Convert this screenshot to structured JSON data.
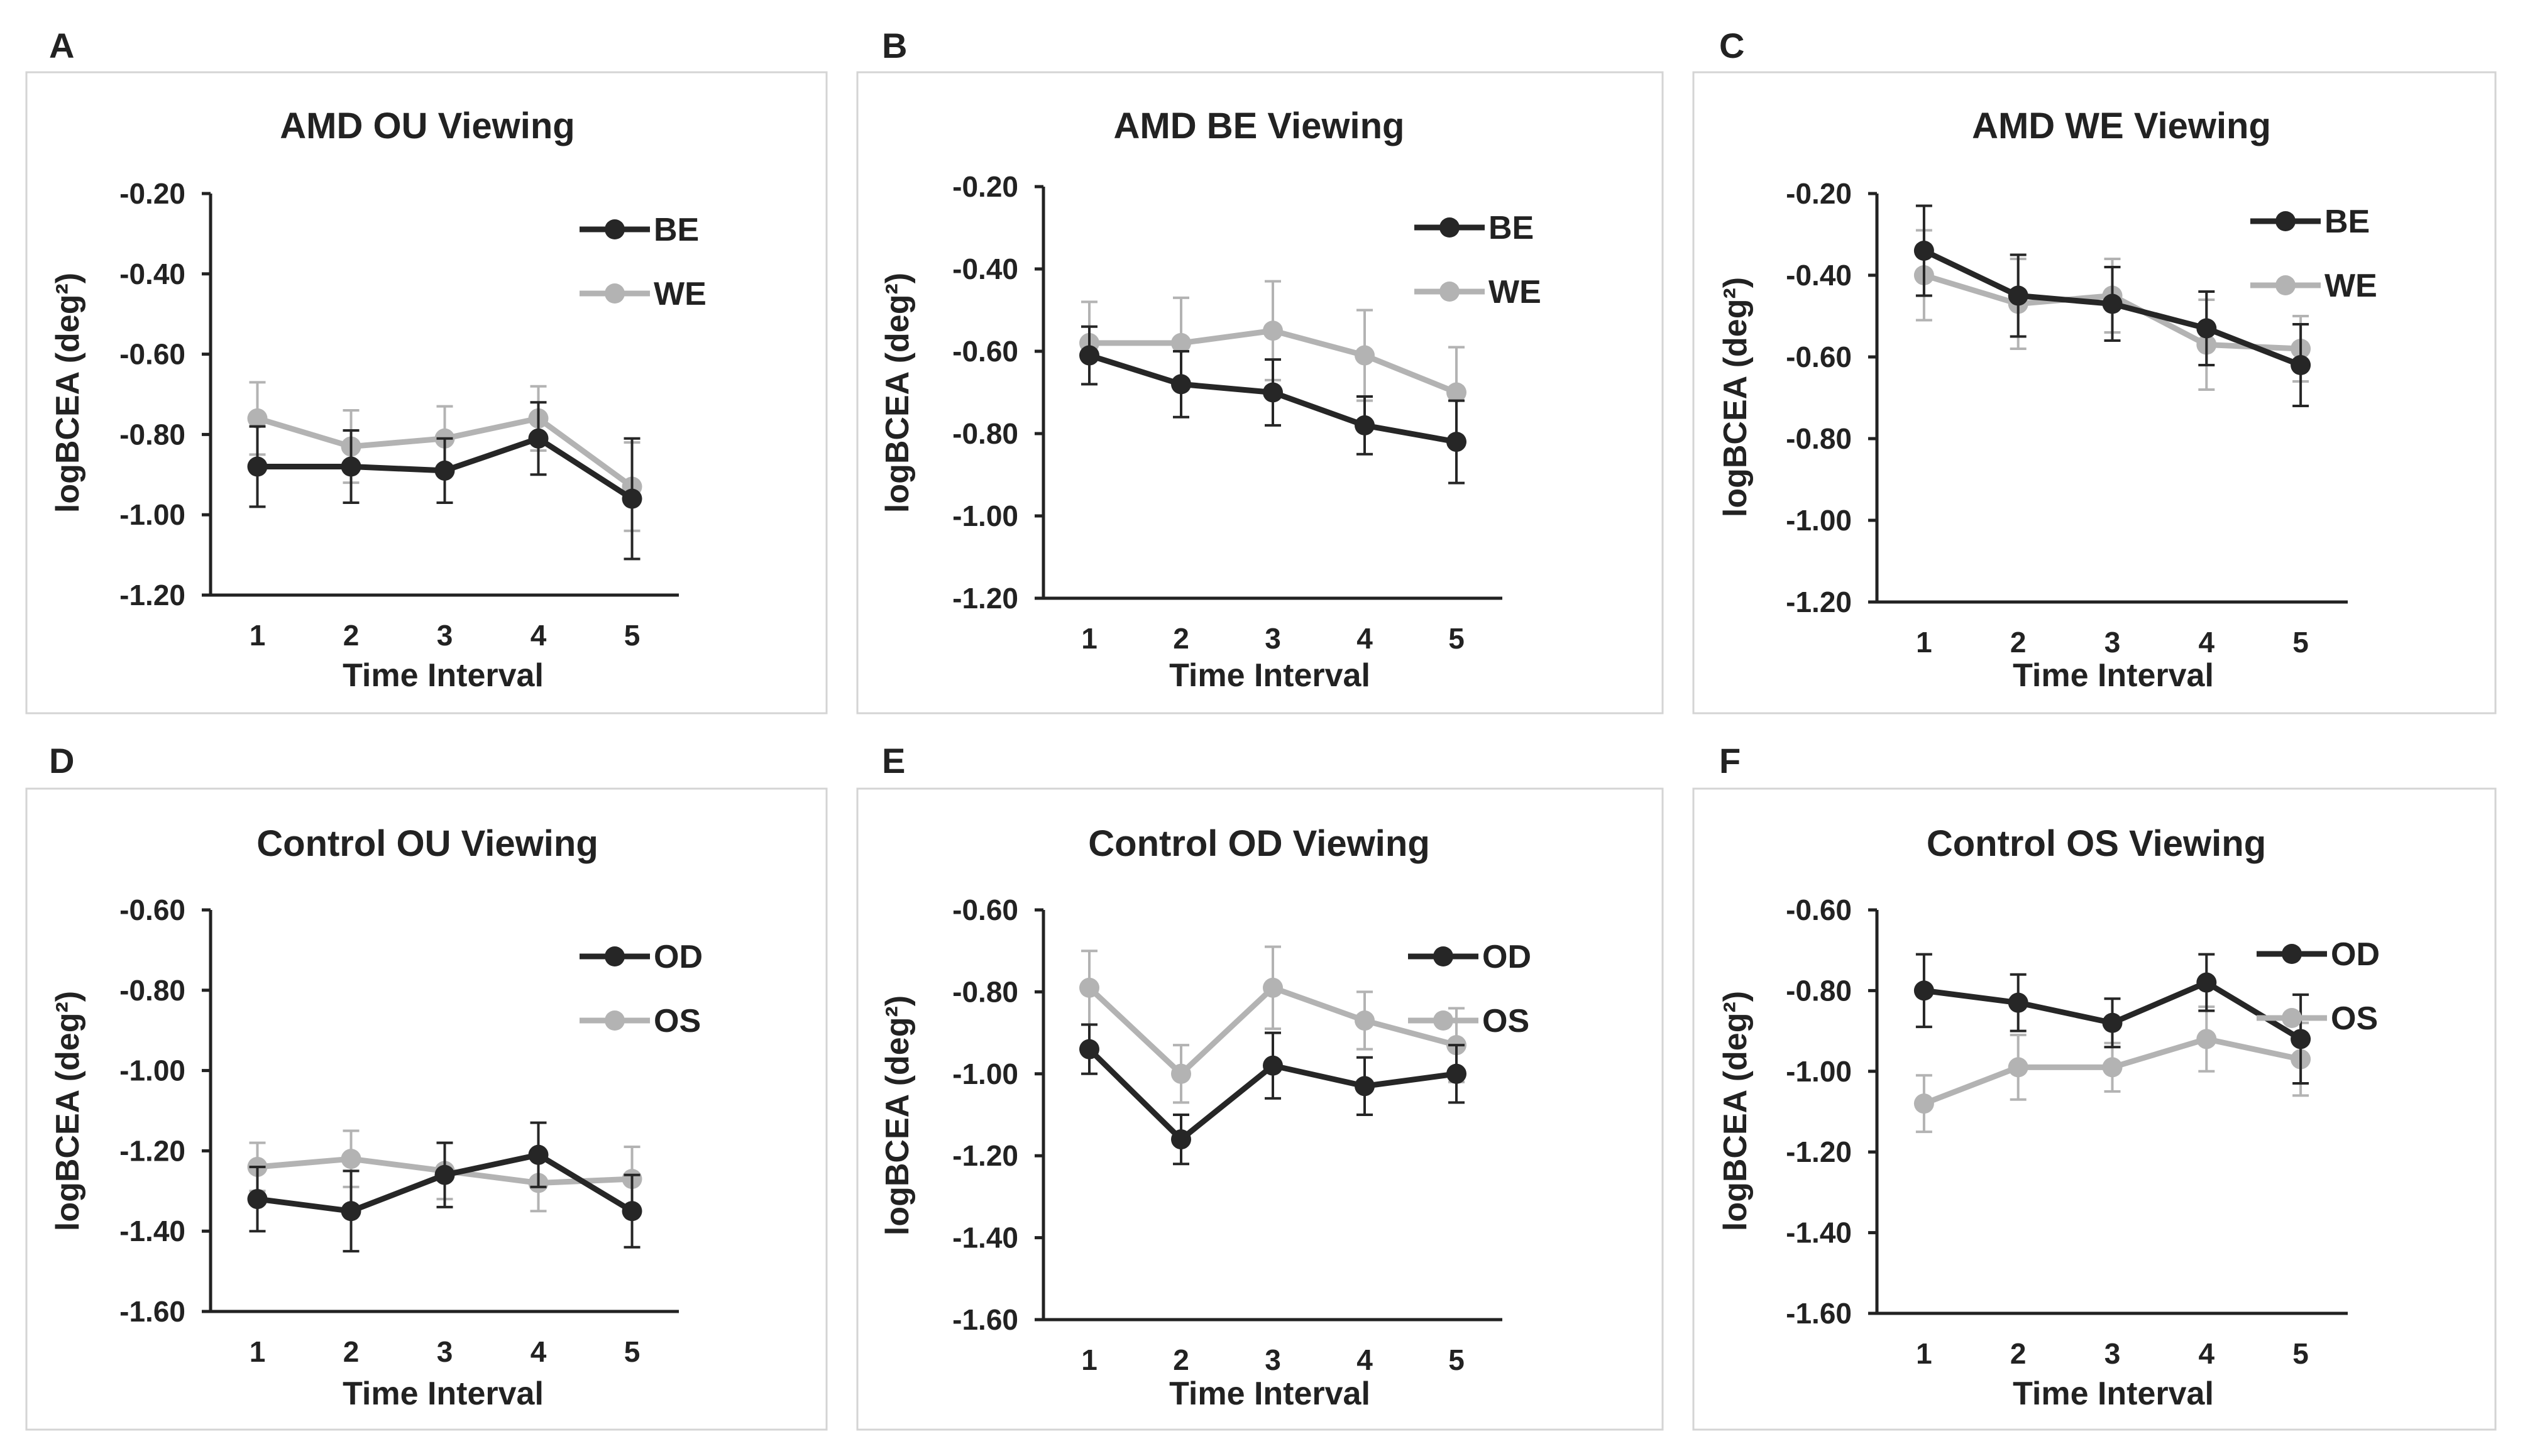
{
  "colors": {
    "dark": "#262626",
    "light": "#b3b3b3",
    "text": "#222222"
  },
  "chart_data": [
    {
      "panel": "A",
      "type": "line",
      "title": "AMD OU Viewing",
      "xlabel": "Time Interval",
      "ylabel": "logBCEA (deg²)",
      "categories": [
        "1",
        "2",
        "3",
        "4",
        "5"
      ],
      "ylim": [
        -1.2,
        -0.2
      ],
      "yticks": [
        "-0.20",
        "-0.40",
        "-0.60",
        "-0.80",
        "-1.00",
        "-1.20"
      ],
      "legend": "top-right",
      "series": [
        {
          "name": "BE",
          "color": "dark",
          "values": [
            -0.88,
            -0.88,
            -0.89,
            -0.81,
            -0.96
          ],
          "errors": [
            0.1,
            0.09,
            0.08,
            0.09,
            0.15
          ]
        },
        {
          "name": "WE",
          "color": "light",
          "values": [
            -0.76,
            -0.83,
            -0.81,
            -0.76,
            -0.93
          ],
          "errors": [
            0.09,
            0.09,
            0.08,
            0.08,
            0.11
          ]
        }
      ]
    },
    {
      "panel": "B",
      "type": "line",
      "title": "AMD BE Viewing",
      "xlabel": "Time Interval",
      "ylabel": "logBCEA (deg²)",
      "categories": [
        "1",
        "2",
        "3",
        "4",
        "5"
      ],
      "ylim": [
        -1.2,
        -0.2
      ],
      "yticks": [
        "-0.20",
        "-0.40",
        "-0.60",
        "-0.80",
        "-1.00",
        "-1.20"
      ],
      "legend": "top-right",
      "series": [
        {
          "name": "BE",
          "color": "dark",
          "values": [
            -0.61,
            -0.68,
            -0.7,
            -0.78,
            -0.82
          ],
          "errors": [
            0.07,
            0.08,
            0.08,
            0.07,
            0.1
          ]
        },
        {
          "name": "WE",
          "color": "light",
          "values": [
            -0.58,
            -0.58,
            -0.55,
            -0.61,
            -0.7
          ],
          "errors": [
            0.1,
            0.11,
            0.12,
            0.11,
            0.11
          ]
        }
      ]
    },
    {
      "panel": "C",
      "type": "line",
      "title": "AMD WE Viewing",
      "xlabel": "Time Interval",
      "ylabel": "logBCEA (deg²)",
      "categories": [
        "1",
        "2",
        "3",
        "4",
        "5"
      ],
      "ylim": [
        -1.2,
        -0.2
      ],
      "yticks": [
        "-0.20",
        "-0.40",
        "-0.60",
        "-0.80",
        "-1.00",
        "-1.20"
      ],
      "legend": "top-right",
      "series": [
        {
          "name": "BE",
          "color": "dark",
          "values": [
            -0.34,
            -0.45,
            -0.47,
            -0.53,
            -0.62
          ],
          "errors": [
            0.11,
            0.1,
            0.09,
            0.09,
            0.1
          ]
        },
        {
          "name": "WE",
          "color": "light",
          "values": [
            -0.4,
            -0.47,
            -0.45,
            -0.57,
            -0.58
          ],
          "errors": [
            0.11,
            0.11,
            0.09,
            0.11,
            0.08
          ]
        }
      ]
    },
    {
      "panel": "D",
      "type": "line",
      "title": "Control OU Viewing",
      "xlabel": "Time Interval",
      "ylabel": "logBCEA (deg²)",
      "categories": [
        "1",
        "2",
        "3",
        "4",
        "5"
      ],
      "ylim": [
        -1.6,
        -0.6
      ],
      "yticks": [
        "-0.60",
        "-0.80",
        "-1.00",
        "-1.20",
        "-1.40",
        "-1.60"
      ],
      "legend": "top-right",
      "series": [
        {
          "name": "OD",
          "color": "dark",
          "values": [
            -1.32,
            -1.35,
            -1.26,
            -1.21,
            -1.35
          ],
          "errors": [
            0.08,
            0.1,
            0.08,
            0.08,
            0.09
          ]
        },
        {
          "name": "OS",
          "color": "light",
          "values": [
            -1.24,
            -1.22,
            -1.25,
            -1.28,
            -1.27
          ],
          "errors": [
            0.06,
            0.07,
            0.07,
            0.07,
            0.08
          ]
        }
      ]
    },
    {
      "panel": "E",
      "type": "line",
      "title": "Control OD Viewing",
      "xlabel": "Time Interval",
      "ylabel": "logBCEA (deg²)",
      "categories": [
        "1",
        "2",
        "3",
        "4",
        "5"
      ],
      "ylim": [
        -1.6,
        -0.6
      ],
      "yticks": [
        "-0.60",
        "-0.80",
        "-1.00",
        "-1.20",
        "-1.40",
        "-1.60"
      ],
      "legend": "top-right",
      "series": [
        {
          "name": "OD",
          "color": "dark",
          "values": [
            -0.94,
            -1.16,
            -0.98,
            -1.03,
            -1.0
          ],
          "errors": [
            0.06,
            0.06,
            0.08,
            0.07,
            0.07
          ]
        },
        {
          "name": "OS",
          "color": "light",
          "values": [
            -0.79,
            -1.0,
            -0.79,
            -0.87,
            -0.93
          ],
          "errors": [
            0.09,
            0.07,
            0.1,
            0.07,
            0.09
          ]
        }
      ]
    },
    {
      "panel": "F",
      "type": "line",
      "title": "Control OS Viewing",
      "xlabel": "Time Interval",
      "ylabel": "logBCEA (deg²)",
      "categories": [
        "1",
        "2",
        "3",
        "4",
        "5"
      ],
      "ylim": [
        -1.6,
        -0.6
      ],
      "yticks": [
        "-0.60",
        "-0.80",
        "-1.00",
        "-1.20",
        "-1.40",
        "-1.60"
      ],
      "legend": "top-right",
      "series": [
        {
          "name": "OD",
          "color": "dark",
          "values": [
            -0.8,
            -0.83,
            -0.88,
            -0.78,
            -0.92
          ],
          "errors": [
            0.09,
            0.07,
            0.06,
            0.07,
            0.11
          ]
        },
        {
          "name": "OS",
          "color": "light",
          "values": [
            -1.08,
            -0.99,
            -0.99,
            -0.92,
            -0.97
          ],
          "errors": [
            0.07,
            0.08,
            0.06,
            0.08,
            0.09
          ]
        }
      ]
    }
  ]
}
